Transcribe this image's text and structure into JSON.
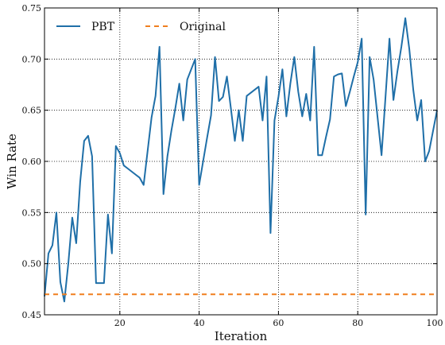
{
  "chart_data": {
    "type": "line",
    "title": "",
    "xlabel": "Iteration",
    "ylabel": "Win Rate",
    "xlim": [
      1,
      100
    ],
    "ylim": [
      0.45,
      0.75
    ],
    "xticks": [
      20,
      40,
      60,
      80,
      100
    ],
    "yticks": [
      0.45,
      0.5,
      0.55,
      0.6,
      0.65,
      0.7,
      0.75
    ],
    "grid": true,
    "legend_position": "top-left",
    "series": [
      {
        "name": "PBT",
        "color": "#1f6fa8",
        "style": "solid",
        "x": [
          1,
          2,
          3,
          4,
          5,
          6,
          7,
          8,
          9,
          10,
          11,
          12,
          13,
          14,
          15,
          16,
          17,
          18,
          19,
          20,
          21,
          22,
          23,
          24,
          25,
          26,
          27,
          28,
          29,
          30,
          31,
          32,
          33,
          34,
          35,
          36,
          37,
          38,
          39,
          40,
          41,
          42,
          43,
          44,
          45,
          46,
          47,
          48,
          49,
          50,
          51,
          52,
          53,
          54,
          55,
          56,
          57,
          58,
          59,
          60,
          61,
          62,
          63,
          64,
          65,
          66,
          67,
          68,
          69,
          70,
          71,
          72,
          73,
          74,
          75,
          76,
          77,
          78,
          79,
          80,
          81,
          82,
          83,
          84,
          85,
          86,
          87,
          88,
          89,
          90,
          91,
          92,
          93,
          94,
          95,
          96,
          97,
          98,
          99,
          100
        ],
        "y": [
          0.468,
          0.51,
          0.518,
          0.55,
          0.482,
          0.463,
          0.5,
          0.545,
          0.52,
          0.58,
          0.62,
          0.625,
          0.605,
          0.481,
          0.481,
          0.481,
          0.548,
          0.51,
          0.615,
          0.608,
          0.596,
          0.593,
          0.59,
          0.587,
          0.584,
          0.577,
          0.61,
          0.643,
          0.664,
          0.712,
          0.568,
          0.605,
          0.63,
          0.652,
          0.676,
          0.64,
          0.68,
          0.69,
          0.7,
          0.577,
          0.6,
          0.623,
          0.645,
          0.702,
          0.659,
          0.663,
          0.683,
          0.652,
          0.62,
          0.65,
          0.62,
          0.664,
          0.667,
          0.67,
          0.673,
          0.64,
          0.683,
          0.53,
          0.64,
          0.663,
          0.69,
          0.644,
          0.676,
          0.702,
          0.668,
          0.644,
          0.666,
          0.64,
          0.712,
          0.606,
          0.606,
          0.624,
          0.641,
          0.683,
          0.685,
          0.686,
          0.654,
          0.668,
          0.683,
          0.697,
          0.72,
          0.548,
          0.702,
          0.68,
          0.643,
          0.606,
          0.663,
          0.72,
          0.66,
          0.688,
          0.712,
          0.74,
          0.71,
          0.67,
          0.64,
          0.66,
          0.6,
          0.61,
          0.63,
          0.65
        ]
      },
      {
        "name": "Original",
        "color": "#f07f1f",
        "style": "dashed",
        "x": [
          1,
          100
        ],
        "y": [
          0.47,
          0.47
        ]
      }
    ]
  }
}
